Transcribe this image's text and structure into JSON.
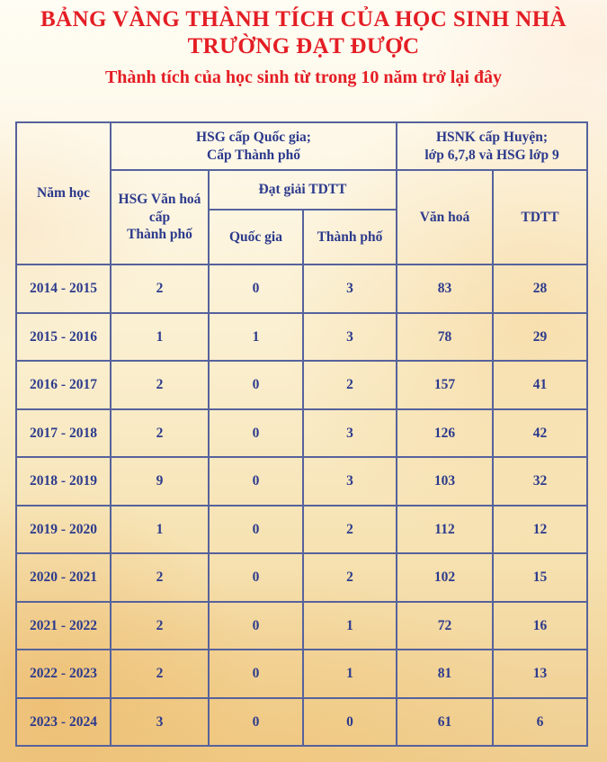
{
  "page": {
    "title_line1": "BẢNG VÀNG THÀNH TÍCH CỦA HỌC SINH NHÀ",
    "title_line2": "TRƯỜNG ĐẠT ĐƯỢC",
    "subtitle": "Thành tích của học sinh từ trong 10 năm trở lại đây"
  },
  "colors": {
    "title_red": "#e41e25",
    "table_text_navy": "#2c3a8c",
    "table_border_blue": "#56629c",
    "background_top_cream": "#fffdf4",
    "background_bottom_tan": "#efce91"
  },
  "table": {
    "header": {
      "nam_hoc": "Năm học",
      "group_left": "HSG cấp Quốc gia;\nCấp Thành phố",
      "group_right": "HSNK cấp Huyện;\nlớp 6,7,8 và HSG lớp 9",
      "hsg_van_hoa": "HSG Văn hoá\ncấp\nThành phố",
      "dat_giai_tdtt": "Đạt giải TDTT",
      "quoc_gia": "Quốc gia",
      "thanh_pho": "Thành phố",
      "van_hoa": "Văn hoá",
      "tdtt": "TDTT"
    },
    "rows": [
      {
        "year": "2014 - 2015",
        "values": [
          "2",
          "0",
          "3",
          "83",
          "28"
        ]
      },
      {
        "year": "2015 - 2016",
        "values": [
          "1",
          "1",
          "3",
          "78",
          "29"
        ]
      },
      {
        "year": "2016 - 2017",
        "values": [
          "2",
          "0",
          "2",
          "157",
          "41"
        ]
      },
      {
        "year": "2017 - 2018",
        "values": [
          "2",
          "0",
          "3",
          "126",
          "42"
        ]
      },
      {
        "year": "2018 - 2019",
        "values": [
          "9",
          "0",
          "3",
          "103",
          "32"
        ]
      },
      {
        "year": "2019 - 2020",
        "values": [
          "1",
          "0",
          "2",
          "112",
          "12"
        ]
      },
      {
        "year": "2020 - 2021",
        "values": [
          "2",
          "0",
          "2",
          "102",
          "15"
        ]
      },
      {
        "year": "2021 - 2022",
        "values": [
          "2",
          "0",
          "1",
          "72",
          "16"
        ]
      },
      {
        "year": "2022 - 2023",
        "values": [
          "2",
          "0",
          "1",
          "81",
          "13"
        ]
      },
      {
        "year": "2023 - 2024",
        "values": [
          "3",
          "0",
          "0",
          "61",
          "6"
        ]
      }
    ]
  }
}
